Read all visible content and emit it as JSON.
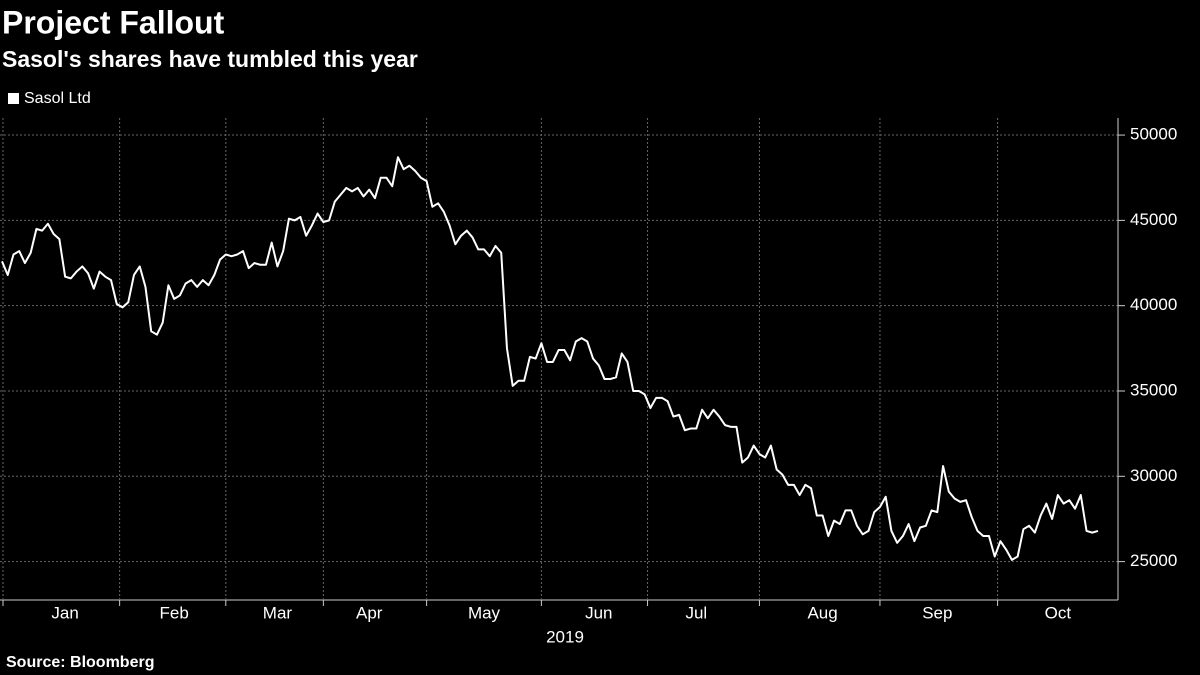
{
  "chart_data": {
    "type": "line",
    "title": "Project Fallout",
    "subtitle": "Sasol's shares have tumbled this year",
    "x_label": "2019",
    "source": "Source: Bloomberg",
    "categories": [
      null,
      null,
      null,
      null,
      null,
      null,
      null,
      null,
      null,
      null,
      null,
      "Jan",
      null,
      null,
      null,
      null,
      null,
      null,
      null,
      null,
      null,
      null,
      null,
      null,
      null,
      null,
      null,
      null,
      null,
      null,
      "Feb",
      null,
      null,
      null,
      null,
      null,
      null,
      null,
      null,
      null,
      null,
      null,
      null,
      null,
      null,
      null,
      null,
      null,
      "Mar",
      null,
      null,
      null,
      null,
      null,
      null,
      null,
      null,
      null,
      null,
      null,
      null,
      null,
      null,
      null,
      "Apr",
      null,
      null,
      null,
      null,
      null,
      null,
      null,
      null,
      null,
      null,
      null,
      null,
      null,
      null,
      null,
      null,
      null,
      null,
      null,
      "May",
      null,
      null,
      null,
      null,
      null,
      null,
      null,
      null,
      null,
      null,
      null,
      null,
      null,
      null,
      null,
      null,
      null,
      null,
      null,
      "Jun",
      null,
      null,
      null,
      null,
      null,
      null,
      null,
      null,
      null,
      null,
      null,
      null,
      null,
      null,
      null,
      null,
      "Jul",
      null,
      null,
      null,
      null,
      null,
      null,
      null,
      null,
      null,
      null,
      null,
      null,
      null,
      null,
      null,
      null,
      null,
      null,
      null,
      null,
      null,
      "Aug",
      null,
      null,
      null,
      null,
      null,
      null,
      null,
      null,
      null,
      null,
      null,
      null,
      null,
      null,
      null,
      null,
      null,
      null,
      null,
      "Sep",
      null,
      null,
      null,
      null,
      null,
      null,
      null,
      null,
      null,
      null,
      null,
      null,
      null,
      null,
      null,
      null,
      null,
      null,
      null,
      null,
      "Oct",
      null,
      null,
      null,
      null,
      null,
      null,
      null
    ],
    "series": [
      {
        "name": "Sasol Ltd",
        "color": "#ffffff",
        "values": [
          42600,
          41800,
          43000,
          43200,
          42500,
          43100,
          44500,
          44400,
          44800,
          44200,
          43900,
          41700,
          41600,
          42000,
          42300,
          41900,
          41000,
          42000,
          41700,
          41500,
          40100,
          39900,
          40200,
          41800,
          42300,
          41100,
          38500,
          38300,
          39000,
          41200,
          40400,
          40600,
          41300,
          41500,
          41100,
          41500,
          41200,
          41800,
          42700,
          43000,
          42900,
          43000,
          43200,
          42200,
          42500,
          42400,
          42400,
          43700,
          42300,
          43200,
          45100,
          45000,
          45200,
          44100,
          44700,
          45400,
          44900,
          45000,
          46100,
          46500,
          46900,
          46700,
          46900,
          46400,
          46800,
          46300,
          47500,
          47500,
          47000,
          48700,
          48000,
          48200,
          47900,
          47500,
          47300,
          45800,
          46000,
          45500,
          44700,
          43600,
          44100,
          44400,
          44000,
          43300,
          43300,
          42900,
          43500,
          43100,
          37500,
          35300,
          35600,
          35600,
          37000,
          36900,
          37800,
          36700,
          36700,
          37400,
          37400,
          36800,
          37900,
          38100,
          37900,
          36900,
          36500,
          35700,
          35700,
          35800,
          37200,
          36700,
          35000,
          35000,
          34800,
          34000,
          34600,
          34600,
          34400,
          33500,
          33600,
          32700,
          32800,
          32800,
          33900,
          33400,
          33900,
          33500,
          33000,
          32900,
          32900,
          30800,
          31100,
          31800,
          31300,
          31100,
          31800,
          30400,
          30100,
          29500,
          29500,
          28900,
          29500,
          29300,
          27700,
          27700,
          26500,
          27400,
          27200,
          28000,
          28000,
          27100,
          26600,
          26800,
          27900,
          28200,
          28800,
          26800,
          26100,
          26500,
          27200,
          26200,
          27000,
          27100,
          28000,
          27900,
          30600,
          29100,
          28700,
          28500,
          28600,
          27600,
          26800,
          26500,
          26500,
          25300,
          26200,
          25700,
          25100,
          25300,
          26900,
          27100,
          26700,
          27700,
          28400,
          27500,
          28900,
          28400,
          28600,
          28100,
          28900,
          26800,
          26700,
          26800
        ]
      }
    ],
    "ylim": [
      22750,
      51000
    ],
    "yticks": [
      25000,
      30000,
      35000,
      40000,
      45000,
      50000
    ],
    "grid": true,
    "legend": "top-left"
  }
}
